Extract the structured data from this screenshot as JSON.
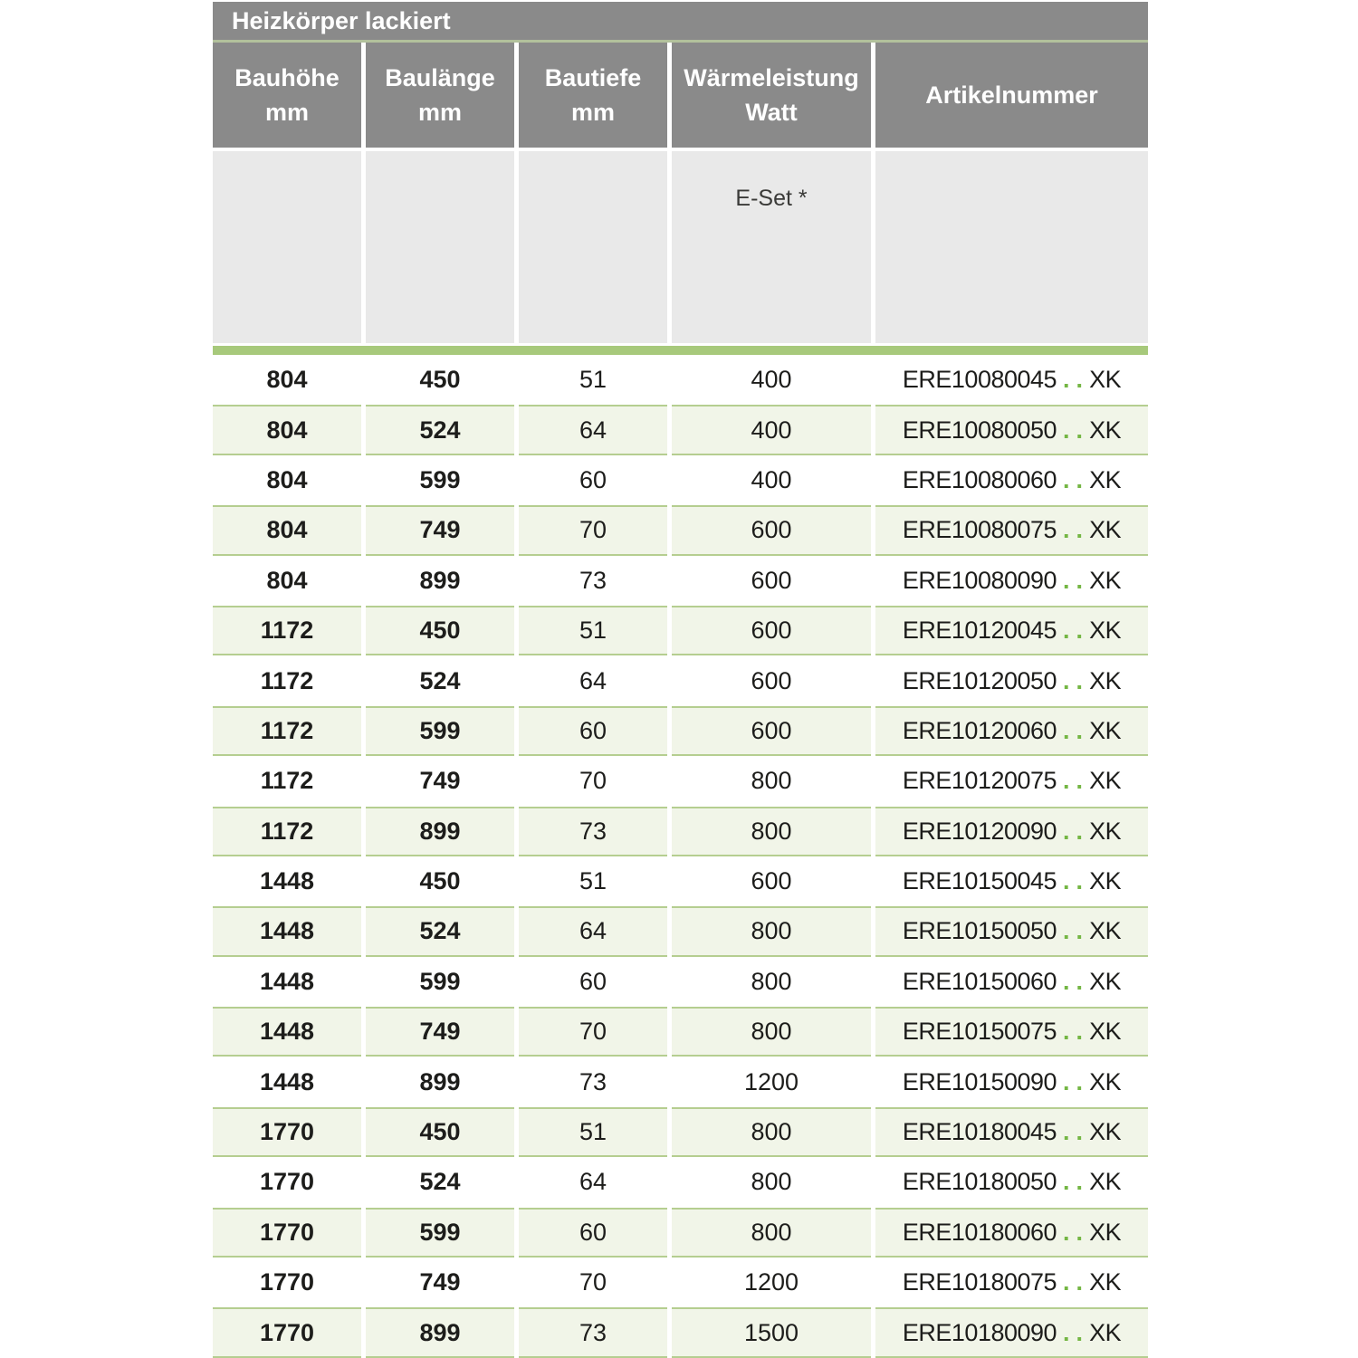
{
  "title_bar": {
    "title": "Heizkörper lackiert"
  },
  "header": {
    "columns": [
      {
        "label": "Bauhöhe",
        "unit": "mm"
      },
      {
        "label": "Baulänge",
        "unit": "mm"
      },
      {
        "label": "Bautiefe",
        "unit": "mm"
      },
      {
        "label": "Wärmeleistung",
        "unit": "Watt"
      },
      {
        "label": "Artikelnummer",
        "unit": ""
      }
    ]
  },
  "subheader": {
    "eset_label": "E-Set *"
  },
  "colors": {
    "header_gray": "#8a8a8a",
    "subheader_gray": "#e9e9e9",
    "accent_green": "#a7c97b",
    "row_green_bg": "#f1f5e8",
    "row_green_border": "#b5ce90",
    "dot_green": "#74b643",
    "divider_green": "#b2c19c",
    "text_dark": "#1d1d1b"
  },
  "table_rows": [
    {
      "bauhoehe": "804",
      "baulaenge": "450",
      "bautiefe": "51",
      "waermeleistung": "400",
      "artikel_prefix": "ERE10080045",
      "artikel_dots": "..",
      "artikel_suffix": "XK"
    },
    {
      "bauhoehe": "804",
      "baulaenge": "524",
      "bautiefe": "64",
      "waermeleistung": "400",
      "artikel_prefix": "ERE10080050",
      "artikel_dots": "..",
      "artikel_suffix": "XK"
    },
    {
      "bauhoehe": "804",
      "baulaenge": "599",
      "bautiefe": "60",
      "waermeleistung": "400",
      "artikel_prefix": "ERE10080060",
      "artikel_dots": "..",
      "artikel_suffix": "XK"
    },
    {
      "bauhoehe": "804",
      "baulaenge": "749",
      "bautiefe": "70",
      "waermeleistung": "600",
      "artikel_prefix": "ERE10080075",
      "artikel_dots": "..",
      "artikel_suffix": "XK"
    },
    {
      "bauhoehe": "804",
      "baulaenge": "899",
      "bautiefe": "73",
      "waermeleistung": "600",
      "artikel_prefix": "ERE10080090",
      "artikel_dots": "..",
      "artikel_suffix": "XK"
    },
    {
      "bauhoehe": "1172",
      "baulaenge": "450",
      "bautiefe": "51",
      "waermeleistung": "600",
      "artikel_prefix": "ERE10120045",
      "artikel_dots": "..",
      "artikel_suffix": "XK"
    },
    {
      "bauhoehe": "1172",
      "baulaenge": "524",
      "bautiefe": "64",
      "waermeleistung": "600",
      "artikel_prefix": "ERE10120050",
      "artikel_dots": "..",
      "artikel_suffix": "XK"
    },
    {
      "bauhoehe": "1172",
      "baulaenge": "599",
      "bautiefe": "60",
      "waermeleistung": "600",
      "artikel_prefix": "ERE10120060",
      "artikel_dots": "..",
      "artikel_suffix": "XK"
    },
    {
      "bauhoehe": "1172",
      "baulaenge": "749",
      "bautiefe": "70",
      "waermeleistung": "800",
      "artikel_prefix": "ERE10120075",
      "artikel_dots": "..",
      "artikel_suffix": "XK"
    },
    {
      "bauhoehe": "1172",
      "baulaenge": "899",
      "bautiefe": "73",
      "waermeleistung": "800",
      "artikel_prefix": "ERE10120090",
      "artikel_dots": "..",
      "artikel_suffix": "XK"
    },
    {
      "bauhoehe": "1448",
      "baulaenge": "450",
      "bautiefe": "51",
      "waermeleistung": "600",
      "artikel_prefix": "ERE10150045",
      "artikel_dots": "..",
      "artikel_suffix": "XK"
    },
    {
      "bauhoehe": "1448",
      "baulaenge": "524",
      "bautiefe": "64",
      "waermeleistung": "800",
      "artikel_prefix": "ERE10150050",
      "artikel_dots": "..",
      "artikel_suffix": "XK"
    },
    {
      "bauhoehe": "1448",
      "baulaenge": "599",
      "bautiefe": "60",
      "waermeleistung": "800",
      "artikel_prefix": "ERE10150060",
      "artikel_dots": "..",
      "artikel_suffix": "XK"
    },
    {
      "bauhoehe": "1448",
      "baulaenge": "749",
      "bautiefe": "70",
      "waermeleistung": "800",
      "artikel_prefix": "ERE10150075",
      "artikel_dots": "..",
      "artikel_suffix": "XK"
    },
    {
      "bauhoehe": "1448",
      "baulaenge": "899",
      "bautiefe": "73",
      "waermeleistung": "1200",
      "artikel_prefix": "ERE10150090",
      "artikel_dots": "..",
      "artikel_suffix": "XK"
    },
    {
      "bauhoehe": "1770",
      "baulaenge": "450",
      "bautiefe": "51",
      "waermeleistung": "800",
      "artikel_prefix": "ERE10180045",
      "artikel_dots": "..",
      "artikel_suffix": "XK"
    },
    {
      "bauhoehe": "1770",
      "baulaenge": "524",
      "bautiefe": "64",
      "waermeleistung": "800",
      "artikel_prefix": "ERE10180050",
      "artikel_dots": "..",
      "artikel_suffix": "XK"
    },
    {
      "bauhoehe": "1770",
      "baulaenge": "599",
      "bautiefe": "60",
      "waermeleistung": "800",
      "artikel_prefix": "ERE10180060",
      "artikel_dots": "..",
      "artikel_suffix": "XK"
    },
    {
      "bauhoehe": "1770",
      "baulaenge": "749",
      "bautiefe": "70",
      "waermeleistung": "1200",
      "artikel_prefix": "ERE10180075",
      "artikel_dots": "..",
      "artikel_suffix": "XK"
    },
    {
      "bauhoehe": "1770",
      "baulaenge": "899",
      "bautiefe": "73",
      "waermeleistung": "1500",
      "artikel_prefix": "ERE10180090",
      "artikel_dots": "..",
      "artikel_suffix": "XK"
    }
  ]
}
